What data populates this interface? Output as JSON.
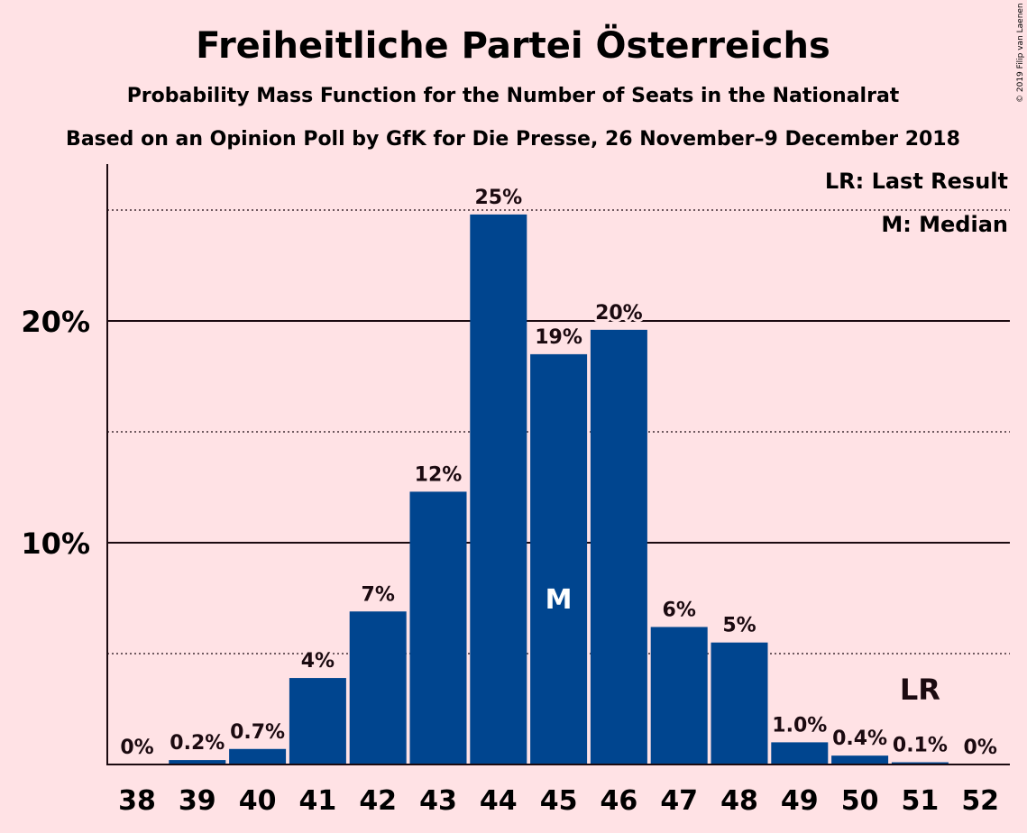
{
  "chart_data": {
    "type": "bar",
    "title": "Freiheitliche Partei Österreichs",
    "subtitle_1": "Probability Mass Function for the Number of Seats in the Nationalrat",
    "subtitle_2": "Based on an Opinion Poll by GfK for Die Presse, 26 November–9 December 2018",
    "xlabel": "",
    "ylabel": "",
    "categories": [
      "38",
      "39",
      "40",
      "41",
      "42",
      "43",
      "44",
      "45",
      "46",
      "47",
      "48",
      "49",
      "50",
      "51",
      "52"
    ],
    "values": [
      0,
      0.2,
      0.7,
      3.9,
      6.9,
      12.3,
      24.8,
      18.5,
      19.6,
      6.2,
      5.5,
      1.0,
      0.4,
      0.1,
      0
    ],
    "data_labels": [
      "0%",
      "0.2%",
      "0.7%",
      "4%",
      "7%",
      "12%",
      "25%",
      "19%",
      "20%",
      "6%",
      "5%",
      "1.0%",
      "0.4%",
      "0.1%",
      "0%"
    ],
    "ylim": [
      0,
      27
    ],
    "yticks": [
      10,
      20
    ],
    "ytick_labels": [
      "10%",
      "20%"
    ],
    "minor_gridlines": [
      5,
      15,
      25
    ],
    "bar_color": "#00458f",
    "background_color": "#ffe2e5",
    "median_seat": "45",
    "median_mark": "M",
    "last_result_seat": "51",
    "last_result_mark": "LR",
    "legend": {
      "placement": "top-right",
      "entries": [
        "LR: Last Result",
        "M: Median"
      ]
    },
    "copyright": "© 2019 Filip van Laenen"
  }
}
